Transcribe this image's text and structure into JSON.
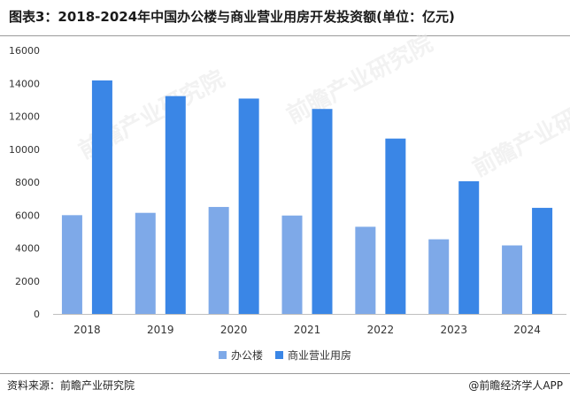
{
  "title": "图表3：2018-2024年中国办公楼与商业营业用房开发投资额(单位：亿元)",
  "source": "资料来源：前瞻产业研究院",
  "credit": "@前瞻经济学人APP",
  "watermark": "前瞻产业研究院",
  "colors": {
    "office": "#7ea9e8",
    "commercial": "#3a86e6",
    "axis": "#bfbfbf",
    "tick": "#333333"
  },
  "chart_data": {
    "type": "bar",
    "categories": [
      "2018",
      "2019",
      "2020",
      "2021",
      "2022",
      "2023",
      "2024"
    ],
    "series": [
      {
        "name": "办公楼",
        "values": [
          5996,
          6137,
          6494,
          5974,
          5291,
          4531,
          4160
        ]
      },
      {
        "name": "商业营业用房",
        "values": [
          14177,
          13226,
          13076,
          12445,
          10647,
          8055,
          6440
        ]
      }
    ],
    "yticks": [
      0,
      2000,
      4000,
      6000,
      8000,
      10000,
      12000,
      14000,
      16000
    ],
    "ylim": [
      0,
      16000
    ],
    "grid": false,
    "legend": "bottom"
  }
}
